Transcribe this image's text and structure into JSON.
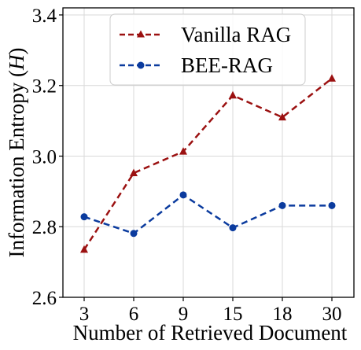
{
  "chart_data": {
    "type": "line",
    "categories": [
      "3",
      "6",
      "9",
      "15",
      "18",
      "30"
    ],
    "series": [
      {
        "name": "Vanilla RAG",
        "values": [
          2.735,
          2.952,
          3.013,
          3.172,
          3.11,
          3.22
        ],
        "color": "#9b1111",
        "marker": "triangle",
        "line_style": "dashed"
      },
      {
        "name": "BEE-RAG",
        "values": [
          2.828,
          2.781,
          2.89,
          2.797,
          2.86,
          2.86
        ],
        "color": "#0b3b9e",
        "marker": "circle",
        "line_style": "dashed"
      }
    ],
    "xlabel": "Number of Retrieved Document",
    "ylabel": "Information Entropy (",
    "ylabel_symbol": "H",
    "ylabel_suffix": ")",
    "ylim": [
      2.6,
      3.42
    ],
    "yticks": [
      "2.6",
      "2.8",
      "3.0",
      "3.2",
      "3.4"
    ],
    "grid": true,
    "legend_position": "top-center"
  }
}
